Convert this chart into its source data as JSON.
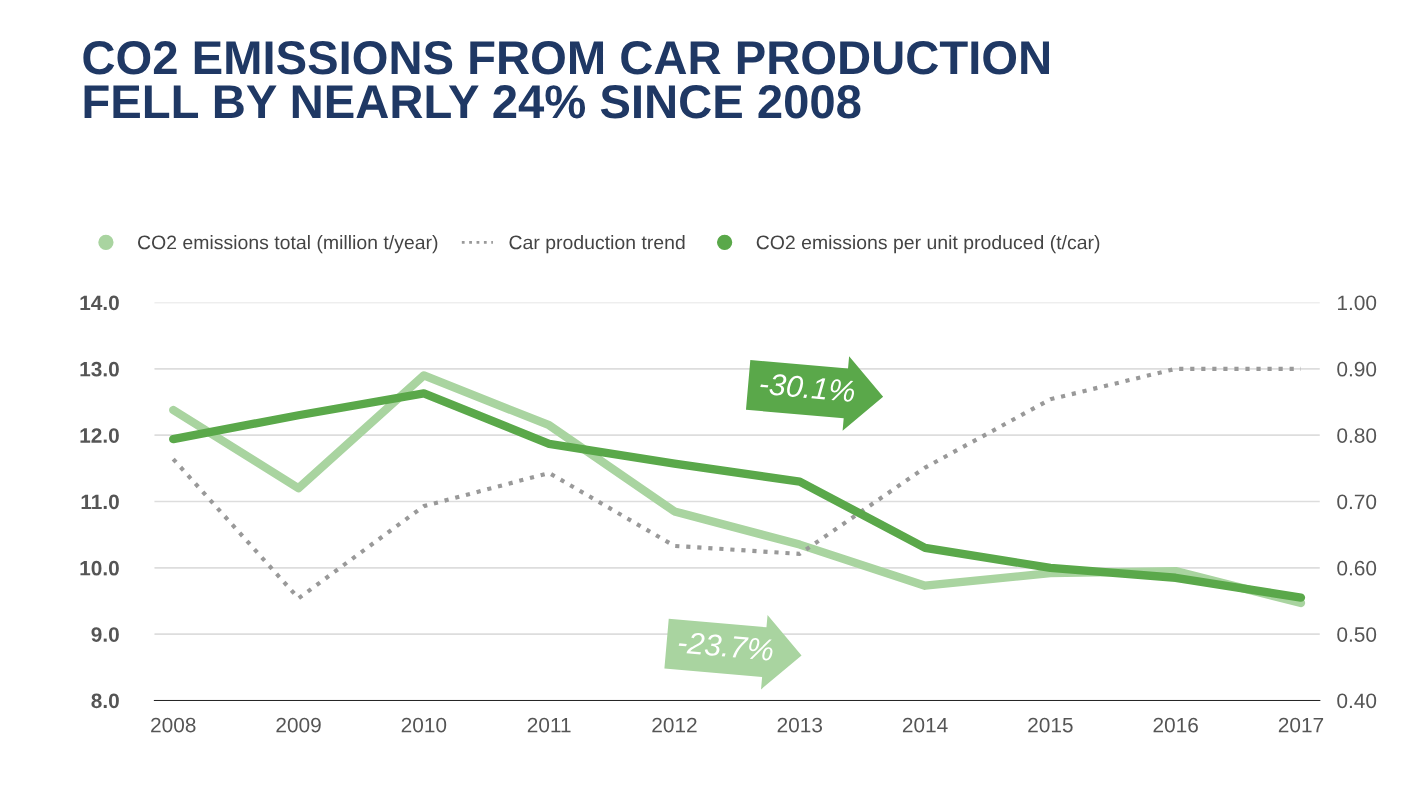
{
  "chart_data": {
    "type": "line",
    "title": "CO2 EMISSIONS FROM CAR PRODUCTION\nFELL BY NEARLY 24% SINCE 2008",
    "categories": [
      "2008",
      "2009",
      "2010",
      "2011",
      "2012",
      "2013",
      "2014",
      "2015",
      "2016",
      "2017"
    ],
    "series": [
      {
        "name": "CO2 emissions total (million t/year)",
        "color": "#a9d4a0",
        "values": [
          12.38,
          11.2,
          12.9,
          12.15,
          10.85,
          10.35,
          9.73,
          9.92,
          9.95,
          9.47
        ]
      },
      {
        "name": "Car production trend",
        "color": "#999999",
        "line_style": "dotted",
        "values": [
          11.64,
          9.54,
          10.93,
          11.43,
          10.33,
          10.21,
          11.51,
          12.54,
          13.0,
          13.0
        ]
      },
      {
        "name": "CO2 emissions per unit produced (t/car)",
        "color": "#5aa84a",
        "axis": "y2",
        "values": [
          0.794,
          0.83,
          0.863,
          0.787,
          0.757,
          0.73,
          0.63,
          0.6,
          0.585,
          0.555
        ]
      }
    ],
    "ylim": [
      8,
      14
    ],
    "yticks": [
      {
        "value": 8,
        "label": "8.0"
      },
      {
        "value": 9,
        "label": "9.0"
      },
      {
        "value": 10,
        "label": "10.0"
      },
      {
        "value": 11,
        "label": "11.0"
      },
      {
        "value": 12,
        "label": "12.0"
      },
      {
        "value": 13,
        "label": "13.0"
      },
      {
        "value": 14,
        "label": "14.0"
      }
    ],
    "y2lim": [
      0.4,
      1.0
    ],
    "y2ticks": [
      {
        "value": 0.4,
        "label": "0.40"
      },
      {
        "value": 0.5,
        "label": "0.50"
      },
      {
        "value": 0.6,
        "label": "0.60"
      },
      {
        "value": 0.7,
        "label": "0.70"
      },
      {
        "value": 0.8,
        "label": "0.80"
      },
      {
        "value": 0.9,
        "label": "0.90"
      },
      {
        "value": 1.0,
        "label": "1.00"
      }
    ],
    "annotations": [
      "-30.1%",
      "-23.7%"
    ],
    "grid": "y",
    "legend": "top left"
  }
}
